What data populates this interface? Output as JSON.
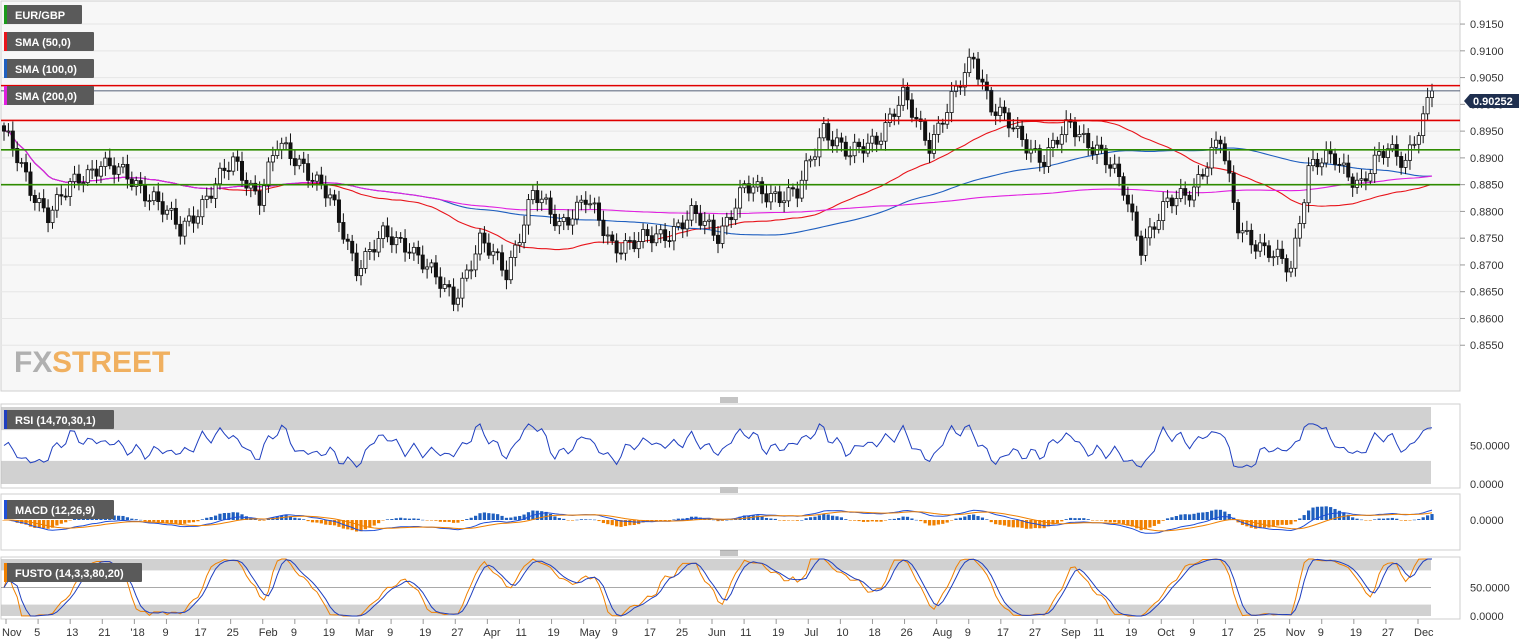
{
  "colors": {
    "bg": "#f7f7f7",
    "frame": "#cfcfcf",
    "bull": "#ffffff",
    "bear": "#111111",
    "sma50": "#e8141b",
    "sma100": "#1f5fbf",
    "sma200": "#e020e0",
    "hline_red": "#e00000",
    "hline_green": "#2e8b00",
    "rsi": "#1f3fbf",
    "macd": "#1f4fd8",
    "signal": "#f08000",
    "hist_pos": "#1f5fbf",
    "hist_neg": "#f08000",
    "fk": "#f08000",
    "fd": "#1f3fbf",
    "band": "#bdbdbd",
    "tag": "#5a5a5a",
    "price_badge": "#1f2f4f",
    "watermark_fx": "#b0b0b0",
    "watermark_street": "#f0b060"
  },
  "watermark": {
    "fx": "FX",
    "street": "STREET"
  },
  "indicator_tags": [
    {
      "label": "EUR/GBP",
      "color": "#1a9a1a"
    },
    {
      "label": "SMA (50,0)",
      "color": "#e8141b"
    },
    {
      "label": "SMA (100,0)",
      "color": "#1f5fbf"
    },
    {
      "label": "SMA (200,0)",
      "color": "#e020e0"
    }
  ],
  "panel_tags": {
    "rsi": "RSI (14,70,30,1)",
    "macd": "MACD (12,26,9)",
    "fusto": "FUSTO (14,3,3,80,20)"
  },
  "price_badge": "0.90252",
  "chart_data": {
    "type": "candlestick",
    "title": "EUR/GBP",
    "ylim": [
      0.85,
      0.918
    ],
    "yticks": [
      "0.9150",
      "0.9100",
      "0.9050",
      "0.9000",
      "0.8950",
      "0.8900",
      "0.8850",
      "0.8800",
      "0.8750",
      "0.8700",
      "0.8650",
      "0.8600",
      "0.8550"
    ],
    "xticks": [
      "Nov",
      "5",
      "13",
      "21",
      "'18",
      "9",
      "17",
      "25",
      "Feb",
      "9",
      "19",
      "Mar",
      "9",
      "19",
      "27",
      "Apr",
      "11",
      "19",
      "May",
      "9",
      "17",
      "25",
      "Jun",
      "11",
      "19",
      "Jul",
      "10",
      "18",
      "26",
      "Aug",
      "9",
      "17",
      "27",
      "Sep",
      "11",
      "19",
      "Oct",
      "9",
      "17",
      "25",
      "Nov",
      "9",
      "19",
      "27",
      "Dec"
    ],
    "horizontal_levels": [
      {
        "value": 0.9035,
        "color": "red"
      },
      {
        "value": 0.897,
        "color": "red"
      },
      {
        "value": 0.8915,
        "color": "green"
      },
      {
        "value": 0.885,
        "color": "green"
      }
    ],
    "last_price": 0.90252,
    "close_keypoints": [
      [
        0,
        0.895
      ],
      [
        6,
        0.884
      ],
      [
        10,
        0.88
      ],
      [
        16,
        0.885
      ],
      [
        22,
        0.8895
      ],
      [
        28,
        0.886
      ],
      [
        34,
        0.883
      ],
      [
        40,
        0.876
      ],
      [
        46,
        0.883
      ],
      [
        52,
        0.889
      ],
      [
        58,
        0.883
      ],
      [
        62,
        0.892
      ],
      [
        68,
        0.889
      ],
      [
        74,
        0.882
      ],
      [
        80,
        0.87
      ],
      [
        86,
        0.875
      ],
      [
        92,
        0.874
      ],
      [
        98,
        0.867
      ],
      [
        102,
        0.864
      ],
      [
        108,
        0.874
      ],
      [
        114,
        0.869
      ],
      [
        120,
        0.883
      ],
      [
        126,
        0.878
      ],
      [
        132,
        0.882
      ],
      [
        138,
        0.874
      ],
      [
        144,
        0.874
      ],
      [
        150,
        0.876
      ],
      [
        156,
        0.879
      ],
      [
        162,
        0.876
      ],
      [
        168,
        0.884
      ],
      [
        174,
        0.8835
      ],
      [
        180,
        0.883
      ],
      [
        186,
        0.896
      ],
      [
        192,
        0.89
      ],
      [
        198,
        0.894
      ],
      [
        204,
        0.901
      ],
      [
        210,
        0.893
      ],
      [
        216,
        0.902
      ],
      [
        220,
        0.909
      ],
      [
        224,
        0.9
      ],
      [
        230,
        0.894
      ],
      [
        236,
        0.89
      ],
      [
        242,
        0.896
      ],
      [
        248,
        0.892
      ],
      [
        254,
        0.884
      ],
      [
        258,
        0.874
      ],
      [
        264,
        0.881
      ],
      [
        270,
        0.885
      ],
      [
        276,
        0.893
      ],
      [
        280,
        0.878
      ],
      [
        286,
        0.872
      ],
      [
        292,
        0.87
      ],
      [
        296,
        0.888
      ],
      [
        302,
        0.89
      ],
      [
        308,
        0.885
      ],
      [
        314,
        0.892
      ],
      [
        318,
        0.89
      ],
      [
        322,
        0.8965
      ],
      [
        324,
        0.9025
      ]
    ],
    "series": [
      {
        "name": "EUR/GBP"
      },
      {
        "name": "SMA (50,0)"
      },
      {
        "name": "SMA (100,0)"
      },
      {
        "name": "SMA (200,0)"
      }
    ],
    "indicators": {
      "rsi": {
        "ticks": [
          "50.0000",
          "0.0000"
        ],
        "upper": 70,
        "lower": 30
      },
      "macd": {
        "ticks": [
          "0.0000"
        ]
      },
      "fusto": {
        "ticks": [
          "50.0000",
          "0.0000"
        ],
        "upper": 80,
        "lower": 20
      }
    }
  }
}
